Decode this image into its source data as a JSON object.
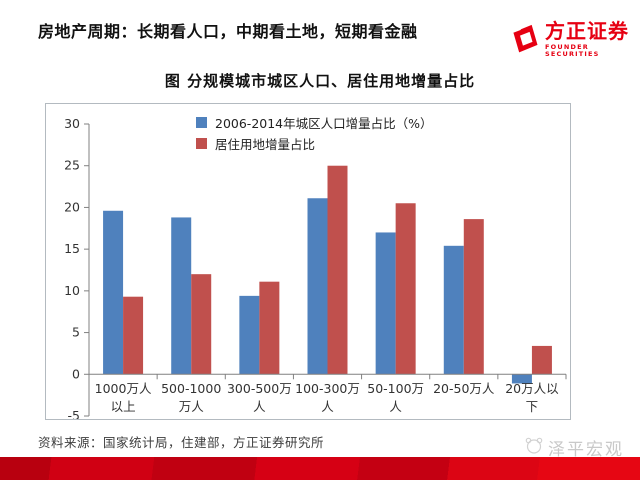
{
  "header": {
    "title": "房地产周期：长期看人口，中期看土地，短期看金融",
    "logo": {
      "name": "方正证券",
      "subtitle": "FOUNDER SECURITIES",
      "color": "#e60012"
    }
  },
  "chart": {
    "title": "图  分规模城市城区人口、居住用地增量占比"
  },
  "chart_data": {
    "type": "bar",
    "title": "图  分规模城市城区人口、居住用地增量占比",
    "categories": [
      "1000万人以上",
      "500-1000万人",
      "300-500万人",
      "100-300万人",
      "50-100万人",
      "20-50万人",
      "20万人以下"
    ],
    "category_label_lines": [
      [
        "1000万人",
        "以上"
      ],
      [
        "500-1000",
        "万人"
      ],
      [
        "300-500万",
        "人"
      ],
      [
        "100-300万",
        "人"
      ],
      [
        "50-100万",
        "人"
      ],
      [
        "20-50万人"
      ],
      [
        "20万人以",
        "下"
      ]
    ],
    "series": [
      {
        "name": "2006-2014年城区人口增量占比（%）",
        "color": "#4f81bd",
        "values": [
          19.6,
          18.8,
          9.4,
          21.1,
          17.0,
          15.4,
          -1.1
        ]
      },
      {
        "name": "居住用地增量占比",
        "color": "#c0504d",
        "values": [
          9.3,
          12.0,
          11.1,
          25.0,
          20.5,
          18.6,
          3.4
        ]
      }
    ],
    "xlabel": "",
    "ylabel": "",
    "ylim": [
      -5,
      30
    ],
    "yticks": [
      30,
      25,
      20,
      15,
      10,
      5,
      0,
      -5
    ],
    "grid": false,
    "legend_position": "top-center",
    "axis_color": "#808080",
    "tick_label_color": "#333333"
  },
  "footer": {
    "source": "资料来源：国家统计局，住建部，方正证券研究所",
    "watermark": "泽平宏观"
  }
}
